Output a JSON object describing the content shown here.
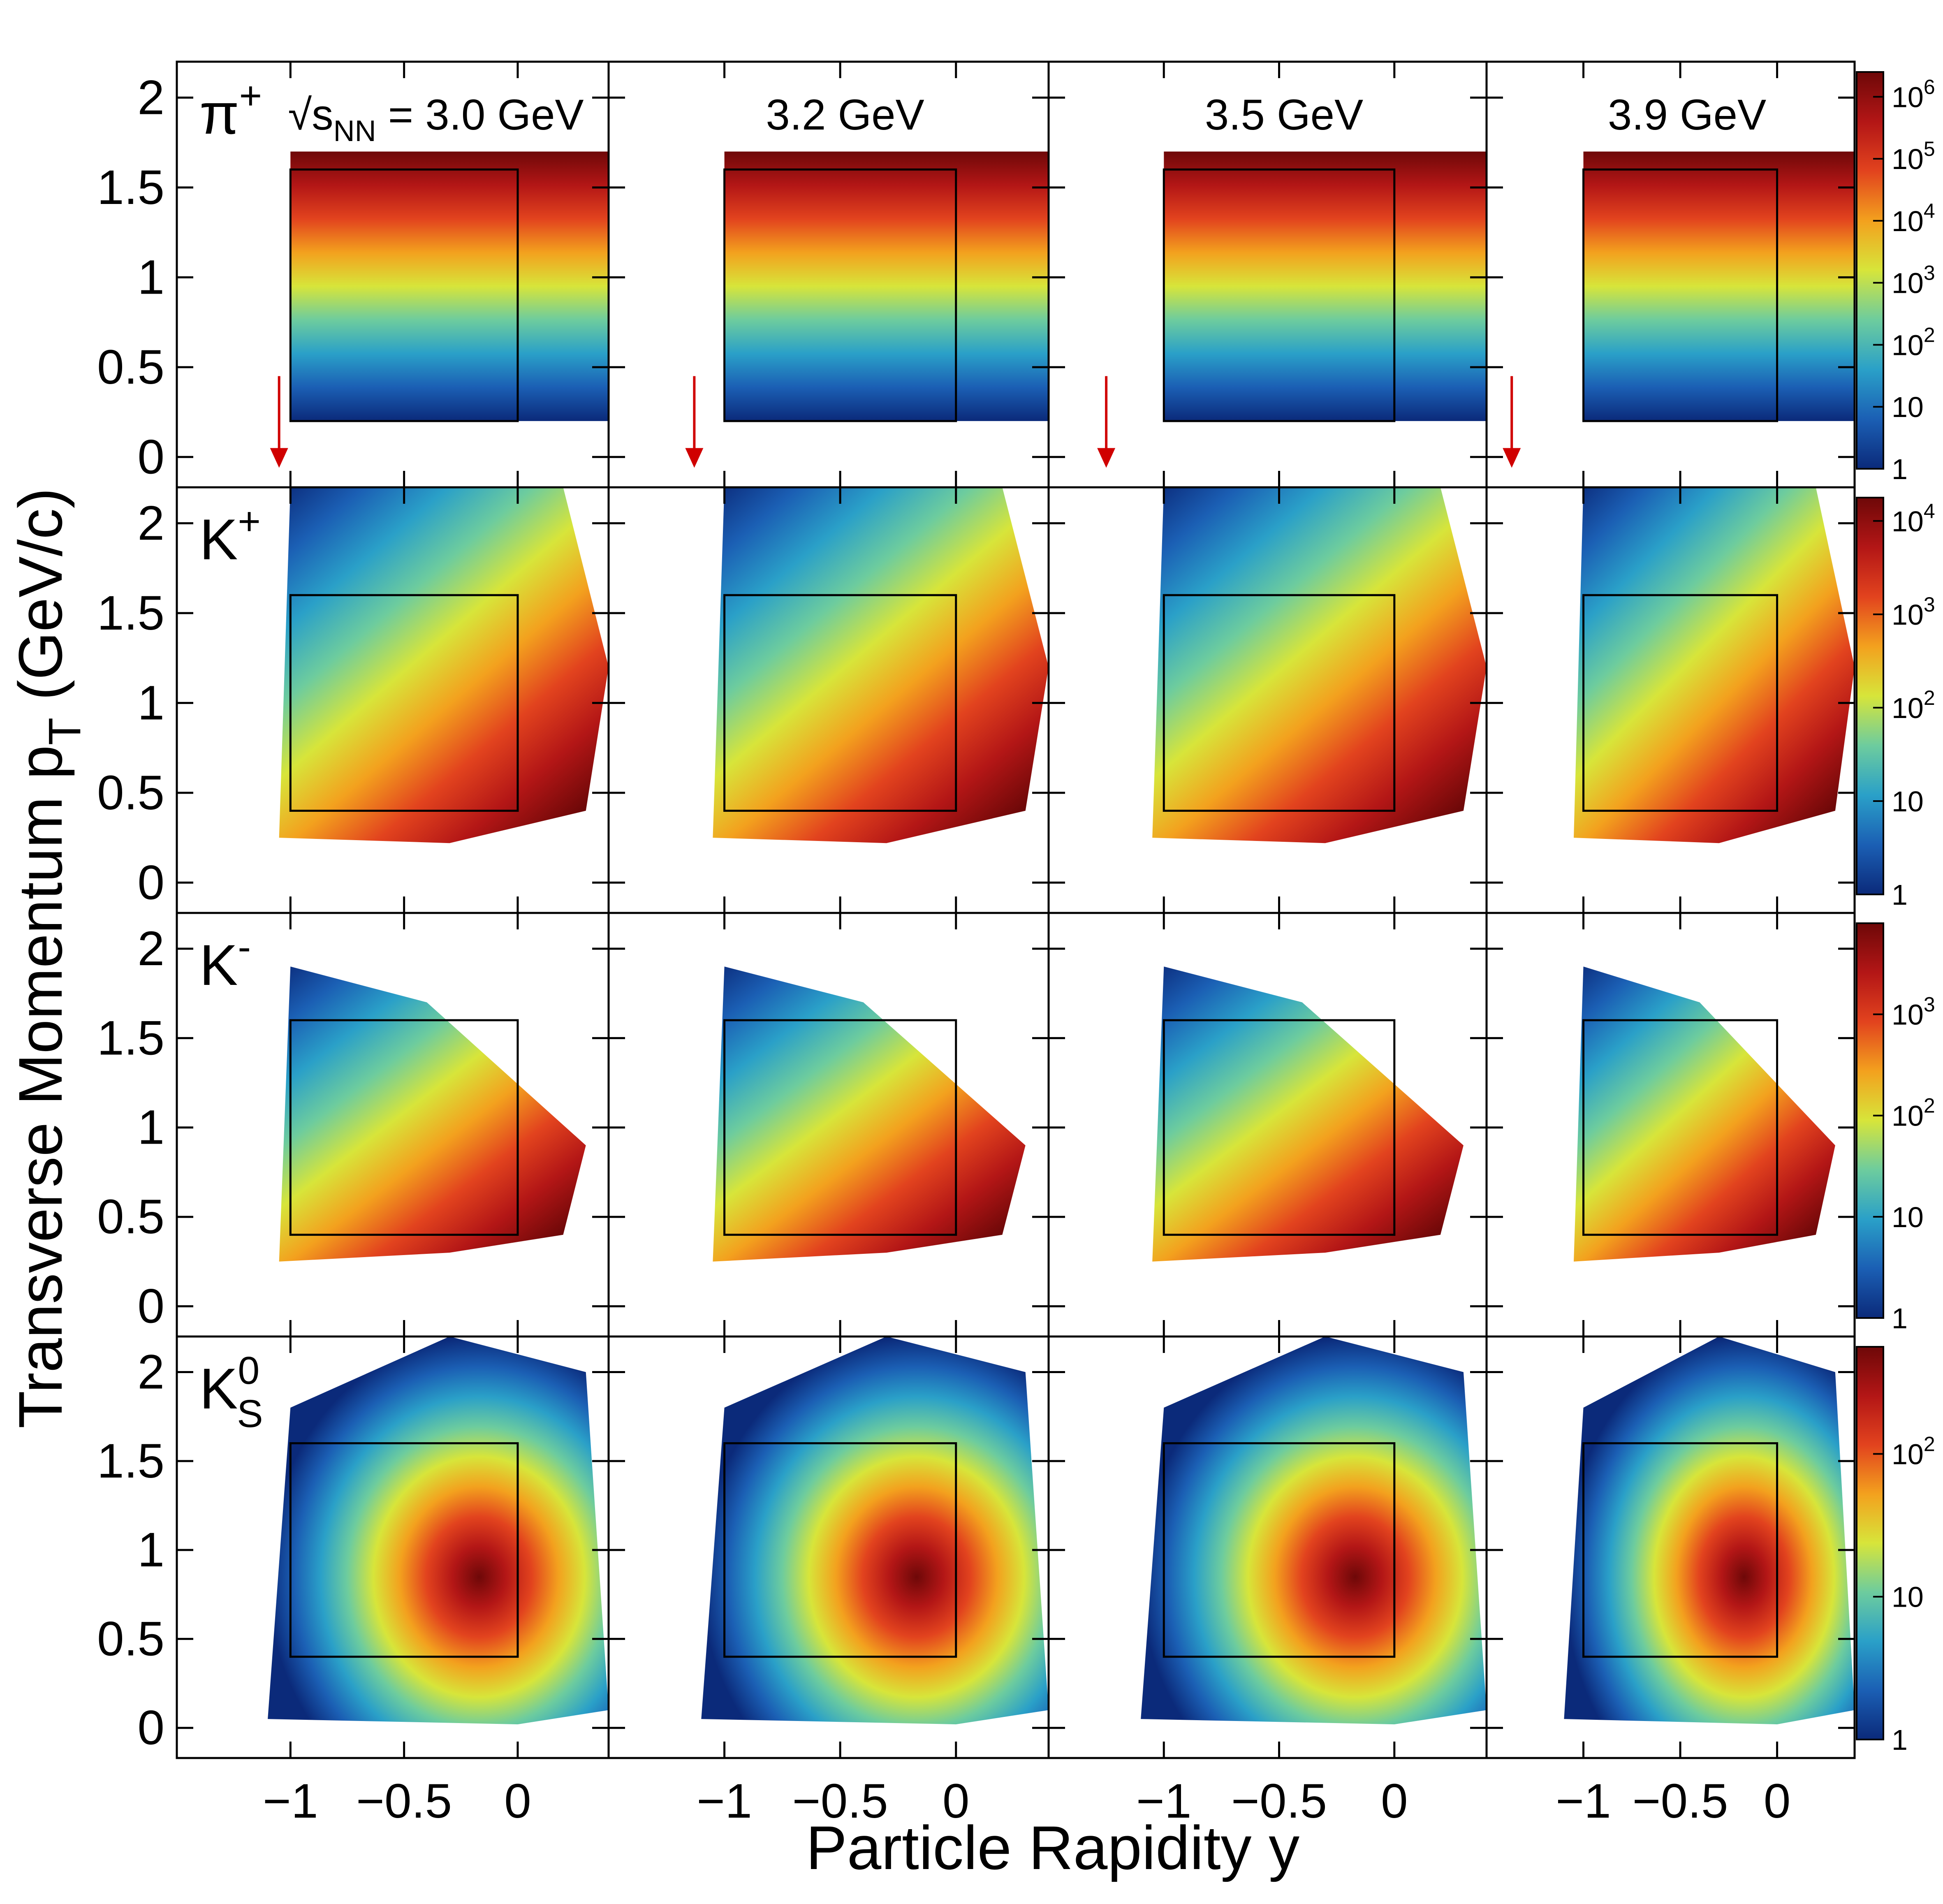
{
  "figure": {
    "xlabel": "Particle Rapidity y",
    "ylabel_main": "Transverse Momentum p",
    "ylabel_sub": "T",
    "ylabel_unit": "(GeV/c)"
  },
  "energy_prefix": "√s",
  "energy_prefix_sub": "NN",
  "energy_prefix_eq": " = ",
  "chart_data": {
    "type": "heatmap",
    "scale": "log",
    "xlim": [
      -1.5,
      0.4
    ],
    "ylim": [
      -0.1,
      2.2
    ],
    "x_tick_labels": [
      "−1",
      "−0.5",
      "0"
    ],
    "x_ticks": [
      -1,
      -0.5,
      0
    ],
    "y_tick_labels": [
      "0",
      "0.5",
      "1",
      "1.5",
      "2"
    ],
    "y_ticks": [
      0,
      0.5,
      1,
      1.5,
      2
    ],
    "columns": [
      {
        "energy": "3.0 GeV",
        "beam_rapidity": -1.05
      },
      {
        "energy": "3.2 GeV",
        "beam_rapidity": -1.13
      },
      {
        "energy": "3.5 GeV",
        "beam_rapidity": -1.25
      },
      {
        "energy": "3.9 GeV",
        "beam_rapidity": -1.37
      }
    ],
    "rows": [
      {
        "particle": "π",
        "particle_sup": "+",
        "particle_sub": "",
        "acceptance_box": {
          "y": [
            -1,
            0
          ],
          "pt": [
            0.2,
            1.6
          ]
        },
        "colorbar_labels": [
          {
            "base": "1",
            "exp": ""
          },
          {
            "base": "10",
            "exp": ""
          },
          {
            "base": "10",
            "exp": "2"
          },
          {
            "base": "10",
            "exp": "3"
          },
          {
            "base": "10",
            "exp": "4"
          },
          {
            "base": "10",
            "exp": "5"
          },
          {
            "base": "10",
            "exp": "6"
          }
        ],
        "colorbar_decades": [
          0,
          1,
          2,
          3,
          4,
          5,
          6
        ],
        "colorbar_max_decade": 6.4
      },
      {
        "particle": "K",
        "particle_sup": "+",
        "particle_sub": "",
        "acceptance_box": {
          "y": [
            -1,
            0
          ],
          "pt": [
            0.4,
            1.6
          ]
        },
        "colorbar_labels": [
          {
            "base": "1",
            "exp": ""
          },
          {
            "base": "10",
            "exp": ""
          },
          {
            "base": "10",
            "exp": "2"
          },
          {
            "base": "10",
            "exp": "3"
          },
          {
            "base": "10",
            "exp": "4"
          }
        ],
        "colorbar_decades": [
          0,
          1,
          2,
          3,
          4
        ],
        "colorbar_max_decade": 4.25
      },
      {
        "particle": "K",
        "particle_sup": "-",
        "particle_sub": "",
        "acceptance_box": {
          "y": [
            -1,
            0
          ],
          "pt": [
            0.4,
            1.6
          ]
        },
        "colorbar_labels": [
          {
            "base": "1",
            "exp": ""
          },
          {
            "base": "10",
            "exp": ""
          },
          {
            "base": "10",
            "exp": "2"
          },
          {
            "base": "10",
            "exp": "3"
          }
        ],
        "colorbar_decades": [
          0,
          1,
          2,
          3
        ],
        "colorbar_max_decade": 3.9
      },
      {
        "particle": "K",
        "particle_sup": "0",
        "particle_sub": "S",
        "acceptance_box": {
          "y": [
            -1,
            0
          ],
          "pt": [
            0.4,
            1.6
          ]
        },
        "colorbar_labels": [
          {
            "base": "1",
            "exp": ""
          },
          {
            "base": "10",
            "exp": ""
          },
          {
            "base": "10",
            "exp": "2"
          }
        ],
        "colorbar_decades": [
          0,
          1,
          2
        ],
        "colorbar_max_decade": 2.75
      }
    ],
    "colormap": [
      "#0b2a7a",
      "#1b5fb4",
      "#2aa0c8",
      "#6dcc9e",
      "#d7e53a",
      "#f3a11e",
      "#e2431e",
      "#b31616",
      "#6e0808"
    ]
  }
}
